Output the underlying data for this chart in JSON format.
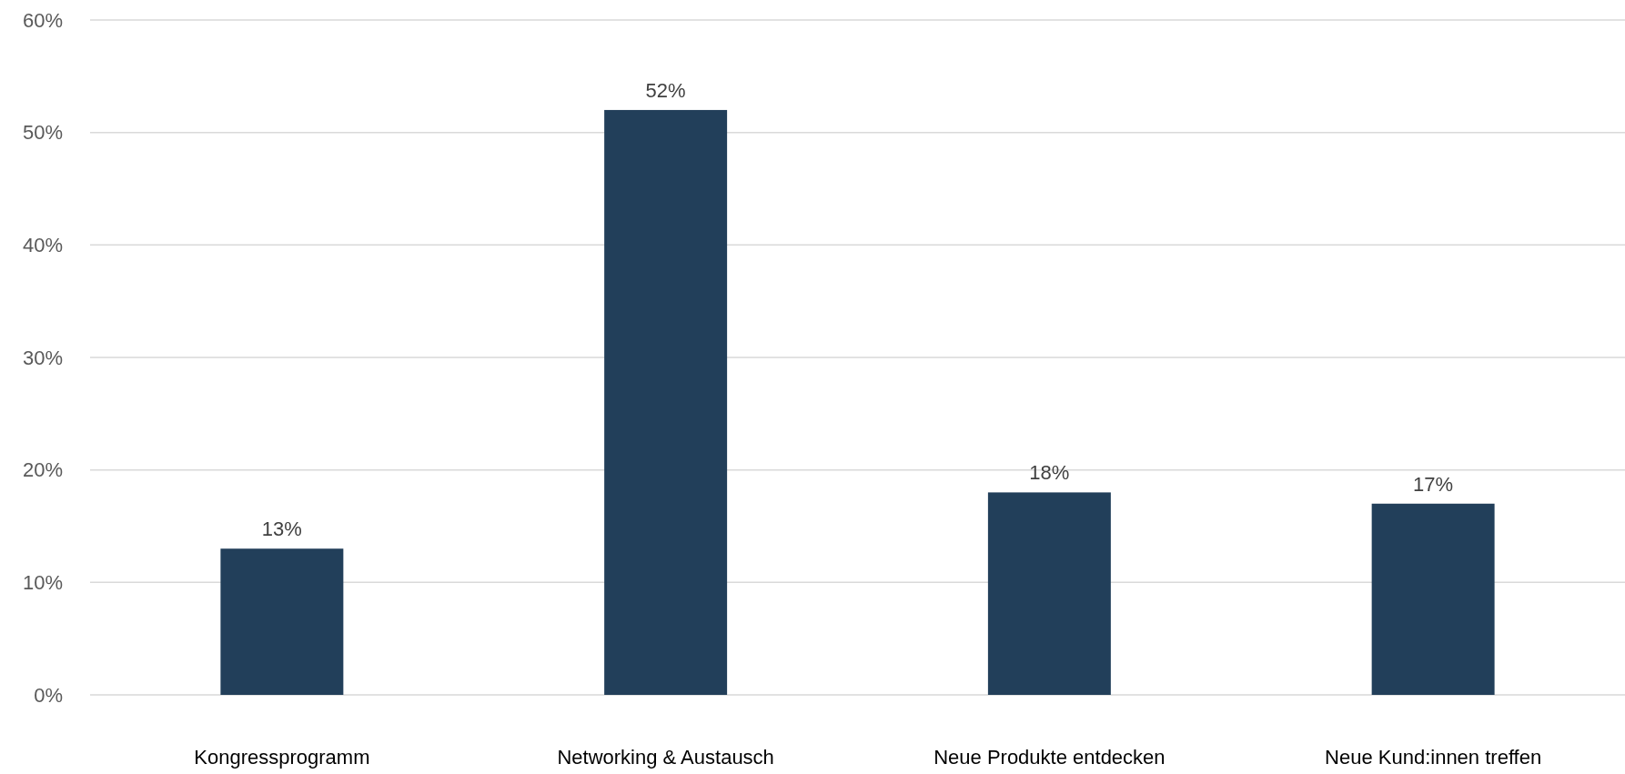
{
  "chart_data": {
    "type": "bar",
    "categories": [
      "Kongressprogramm",
      "Networking & Austausch",
      "Neue Produkte entdecken",
      "Neue Kund:innen treffen"
    ],
    "values": [
      13,
      52,
      18,
      17
    ],
    "value_labels": [
      "13%",
      "52%",
      "18%",
      "17%"
    ],
    "color": "#223f5a",
    "ylim": [
      0,
      60
    ],
    "yticks": [
      {
        "value": 0,
        "label": "0%"
      },
      {
        "value": 10,
        "label": "10%"
      },
      {
        "value": 20,
        "label": "20%"
      },
      {
        "value": 30,
        "label": "30%"
      },
      {
        "value": 40,
        "label": "40%"
      },
      {
        "value": 50,
        "label": "50%"
      },
      {
        "value": 60,
        "label": "60%"
      }
    ],
    "grid": "y"
  }
}
